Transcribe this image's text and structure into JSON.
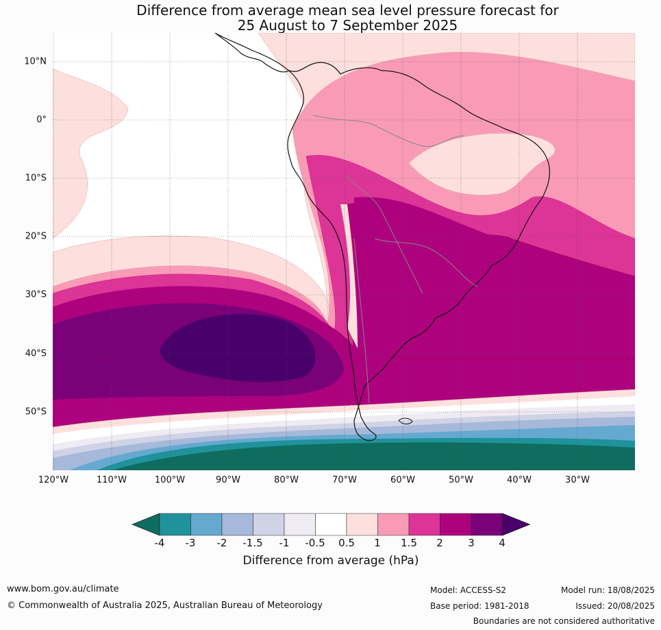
{
  "title_line1": "Difference from average mean sea level pressure forecast for",
  "title_line2": "25 August to 7 September 2025",
  "lat_labels": [
    "10°N",
    "0°",
    "10°S",
    "20°S",
    "30°S",
    "40°S",
    "50°S"
  ],
  "lon_labels": [
    "120°W",
    "110°W",
    "100°W",
    "90°W",
    "80°W",
    "70°W",
    "60°W",
    "50°W",
    "40°W",
    "30°W"
  ],
  "colorbar": {
    "ticks": [
      "-4",
      "-3",
      "-2",
      "-1.5",
      "-1",
      "-0.5",
      "0.5",
      "1",
      "1.5",
      "2",
      "3",
      "4"
    ],
    "colors": [
      "#0e6d5f",
      "#20929c",
      "#66a9d0",
      "#a6b9da",
      "#d0d2e6",
      "#efebf2",
      "#ffffff",
      "#fde0dd",
      "#f99bb7",
      "#dd3497",
      "#ae017e",
      "#7a0177",
      "#49006a"
    ],
    "label": "Difference from average (hPa)"
  },
  "footer": {
    "website": "www.bom.gov.au/climate",
    "copyright": "© Commonwealth of Australia 2025, Australian Bureau of Meteorology",
    "model": "Model: ACCESS-S2",
    "model_run": "Model run: 18/08/2025",
    "base_period": "Base period: 1981-2018",
    "issued": "Issued: 20/08/2025",
    "disclaimer": "Boundaries are not considered authoritative"
  }
}
